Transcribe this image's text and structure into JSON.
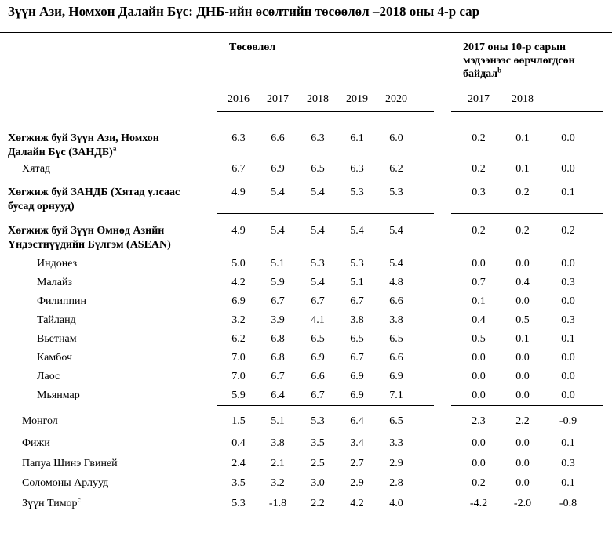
{
  "title": "Зүүн Ази, Номхон Далайн Бүс: ДНБ-ийн өсөлтийн төсөөлөл –2018 оны 4-р сар",
  "header": {
    "forecast_label": "Төсөөлөл",
    "revision_label_1": "2017 оны 10-р сарын",
    "revision_label_2": "мэдээнээс өөрчлөгдсөн",
    "revision_label_3": "байдал",
    "revision_sup": "b",
    "forecast_years": [
      "2016",
      "2017",
      "2018",
      "2019",
      "2020"
    ],
    "revision_years": [
      "2017",
      "2018",
      ""
    ]
  },
  "rows": [
    {
      "line1": "Хөгжиж буй Зүүн Ази, Номхон",
      "line2": "Далайн Бүс (ЗАНДБ)",
      "sup": "a",
      "bold": true,
      "indent": 0,
      "values": [
        "6.3",
        "6.6",
        "6.3",
        "6.1",
        "6.0"
      ],
      "revisions": [
        "0.2",
        "0.1",
        "0.0"
      ]
    },
    {
      "line1": "Хятад",
      "line2": "",
      "sup": "",
      "bold": false,
      "indent": 1,
      "values": [
        "6.7",
        "6.9",
        "6.5",
        "6.3",
        "6.2"
      ],
      "revisions": [
        "0.2",
        "0.1",
        "0.0"
      ]
    },
    {
      "line1": "Хөгжиж буй ЗАНДБ (Хятад улсаас",
      "line2": "бусад орнууд)",
      "sup": "",
      "bold": true,
      "indent": 0,
      "values": [
        "4.9",
        "5.4",
        "5.4",
        "5.3",
        "5.3"
      ],
      "revisions": [
        "0.3",
        "0.2",
        "0.1"
      ]
    },
    {
      "line1": "Хөгжиж буй Зүүн Өмнөд Азийн",
      "line2": "Үндэстнүүдийн Бүлгэм (ASEAN)",
      "sup": "",
      "bold": true,
      "indent": 0,
      "values": [
        "4.9",
        "5.4",
        "5.4",
        "5.4",
        "5.4"
      ],
      "revisions": [
        "0.2",
        "0.2",
        "0.2"
      ]
    },
    {
      "line1": "Индонез",
      "line2": "",
      "sup": "",
      "bold": false,
      "indent": 2,
      "values": [
        "5.0",
        "5.1",
        "5.3",
        "5.3",
        "5.4"
      ],
      "revisions": [
        "0.0",
        "0.0",
        "0.0"
      ]
    },
    {
      "line1": "Малайз",
      "line2": "",
      "sup": "",
      "bold": false,
      "indent": 2,
      "values": [
        "4.2",
        "5.9",
        "5.4",
        "5.1",
        "4.8"
      ],
      "revisions": [
        "0.7",
        "0.4",
        "0.3"
      ]
    },
    {
      "line1": "Филиппин",
      "line2": "",
      "sup": "",
      "bold": false,
      "indent": 2,
      "values": [
        "6.9",
        "6.7",
        "6.7",
        "6.7",
        "6.6"
      ],
      "revisions": [
        "0.1",
        "0.0",
        "0.0"
      ]
    },
    {
      "line1": "Тайланд",
      "line2": "",
      "sup": "",
      "bold": false,
      "indent": 2,
      "values": [
        "3.2",
        "3.9",
        "4.1",
        "3.8",
        "3.8"
      ],
      "revisions": [
        "0.4",
        "0.5",
        "0.3"
      ]
    },
    {
      "line1": "Вьетнам",
      "line2": "",
      "sup": "",
      "bold": false,
      "indent": 2,
      "values": [
        "6.2",
        "6.8",
        "6.5",
        "6.5",
        "6.5"
      ],
      "revisions": [
        "0.5",
        "0.1",
        "0.1"
      ]
    },
    {
      "line1": "Камбоч",
      "line2": "",
      "sup": "",
      "bold": false,
      "indent": 2,
      "values": [
        "7.0",
        "6.8",
        "6.9",
        "6.7",
        "6.6"
      ],
      "revisions": [
        "0.0",
        "0.0",
        "0.0"
      ]
    },
    {
      "line1": "Лаос",
      "line2": "",
      "sup": "",
      "bold": false,
      "indent": 2,
      "values": [
        "7.0",
        "6.7",
        "6.6",
        "6.9",
        "6.9"
      ],
      "revisions": [
        "0.0",
        "0.0",
        "0.0"
      ]
    },
    {
      "line1": "Мьянмар",
      "line2": "",
      "sup": "",
      "bold": false,
      "indent": 2,
      "values": [
        "5.9",
        "6.4",
        "6.7",
        "6.9",
        "7.1"
      ],
      "revisions": [
        "0.0",
        "0.0",
        "0.0"
      ]
    },
    {
      "line1": "Монгол",
      "line2": "",
      "sup": "",
      "bold": false,
      "indent": 1,
      "values": [
        "1.5",
        "5.1",
        "5.3",
        "6.4",
        "6.5"
      ],
      "revisions": [
        "2.3",
        "2.2",
        "-0.9"
      ]
    },
    {
      "line1": "Фижи",
      "line2": "",
      "sup": "",
      "bold": false,
      "indent": 1,
      "values": [
        "0.4",
        "3.8",
        "3.5",
        "3.4",
        "3.3"
      ],
      "revisions": [
        "0.0",
        "0.0",
        "0.1"
      ]
    },
    {
      "line1": "Папуа Шинэ Гвиней",
      "line2": "",
      "sup": "",
      "bold": false,
      "indent": 1,
      "values": [
        "2.4",
        "2.1",
        "2.5",
        "2.7",
        "2.9"
      ],
      "revisions": [
        "0.0",
        "0.0",
        "0.3"
      ]
    },
    {
      "line1": "Соломоны Арлууд",
      "line2": "",
      "sup": "",
      "bold": false,
      "indent": 1,
      "values": [
        "3.5",
        "3.2",
        "3.0",
        "2.9",
        "2.8"
      ],
      "revisions": [
        "0.2",
        "0.0",
        "0.1"
      ]
    },
    {
      "line1": "Зүүн Тимор",
      "line2": "",
      "sup": "c",
      "bold": false,
      "indent": 1,
      "values": [
        "5.3",
        "-1.8",
        "2.2",
        "4.2",
        "4.0"
      ],
      "revisions": [
        "-4.2",
        "-2.0",
        "-0.8"
      ]
    }
  ]
}
